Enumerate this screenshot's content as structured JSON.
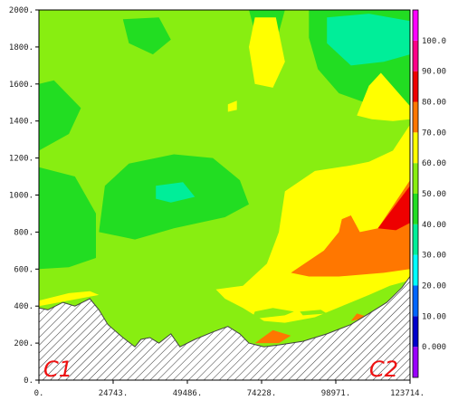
{
  "chart_data": {
    "type": "heatmap",
    "title": "",
    "xlabel": "",
    "ylabel": "",
    "xlim": [
      0,
      123714
    ],
    "ylim": [
      0,
      2000
    ],
    "x_ticks": [
      "0.",
      "24743.",
      "49486.",
      "74228.",
      "98971.",
      "123714."
    ],
    "y_ticks": [
      "0.",
      "200.",
      "400.",
      "600.",
      "800.",
      "1000.",
      "1200.",
      "1400.",
      "1600.",
      "1800.",
      "2000."
    ],
    "x_tick_values": [
      0,
      24743,
      49486,
      74228,
      98971,
      123714
    ],
    "y_tick_values": [
      0,
      200,
      400,
      600,
      800,
      1000,
      1200,
      1400,
      1600,
      1800,
      2000
    ],
    "colorbar_labels": [
      "0.000",
      "10.00",
      "20.00",
      "30.00",
      "40.00",
      "50.00",
      "60.00",
      "70.00",
      "80.00",
      "90.00",
      "100.0"
    ],
    "colorbar_levels": [
      {
        "from": -10,
        "to": 0,
        "color": "#9900ff"
      },
      {
        "from": 0,
        "to": 10,
        "color": "#0000cc"
      },
      {
        "from": 10,
        "to": 20,
        "color": "#0066ff"
      },
      {
        "from": 20,
        "to": 30,
        "color": "#00ffff"
      },
      {
        "from": 30,
        "to": 40,
        "color": "#00ee99"
      },
      {
        "from": 40,
        "to": 50,
        "color": "#22dd22"
      },
      {
        "from": 50,
        "to": 60,
        "color": "#88ee11"
      },
      {
        "from": 60,
        "to": 70,
        "color": "#ffff00"
      },
      {
        "from": 70,
        "to": 80,
        "color": "#ff7700"
      },
      {
        "from": 80,
        "to": 90,
        "color": "#ee0000"
      },
      {
        "from": 90,
        "to": 100,
        "color": "#ff0088"
      },
      {
        "from": 100,
        "to": 110,
        "color": "#ff00ff"
      }
    ],
    "corner_labels": {
      "left": "C1",
      "right": "C2"
    },
    "terrain": {
      "x": [
        0,
        3000,
        8000,
        12000,
        17000,
        20000,
        23000,
        28000,
        32000,
        34000,
        37000,
        40000,
        44000,
        47000,
        52000,
        58000,
        63000,
        67000,
        70000,
        75000,
        80000,
        88000,
        96000,
        104000,
        110000,
        116000,
        121000,
        123714
      ],
      "y": [
        390,
        380,
        420,
        400,
        440,
        380,
        300,
        230,
        180,
        220,
        230,
        200,
        250,
        180,
        220,
        260,
        290,
        250,
        200,
        180,
        190,
        210,
        250,
        300,
        360,
        420,
        500,
        560
      ]
    },
    "regions": [
      {
        "level": 50,
        "points": [
          [
            0,
            0
          ],
          [
            123714,
            0
          ],
          [
            123714,
            2000
          ],
          [
            0,
            2000
          ]
        ]
      },
      {
        "level": 40,
        "points": [
          [
            0,
            600
          ],
          [
            10000,
            610
          ],
          [
            19000,
            660
          ],
          [
            19000,
            900
          ],
          [
            12000,
            1100
          ],
          [
            0,
            1150
          ]
        ]
      },
      {
        "level": 40,
        "points": [
          [
            20000,
            800
          ],
          [
            32000,
            760
          ],
          [
            45000,
            820
          ],
          [
            62000,
            880
          ],
          [
            70000,
            950
          ],
          [
            67000,
            1080
          ],
          [
            58000,
            1200
          ],
          [
            45000,
            1220
          ],
          [
            30000,
            1170
          ],
          [
            22000,
            1050
          ]
        ]
      },
      {
        "level": 40,
        "points": [
          [
            0,
            1240
          ],
          [
            10000,
            1330
          ],
          [
            14000,
            1470
          ],
          [
            5000,
            1620
          ],
          [
            0,
            1600
          ]
        ]
      },
      {
        "level": 40,
        "points": [
          [
            28000,
            1950
          ],
          [
            40000,
            1960
          ],
          [
            44000,
            1840
          ],
          [
            38000,
            1760
          ],
          [
            30000,
            1820
          ]
        ]
      },
      {
        "level": 40,
        "points": [
          [
            70000,
            2000
          ],
          [
            82000,
            2000
          ],
          [
            80000,
            1880
          ],
          [
            72000,
            1880
          ]
        ]
      },
      {
        "level": 40,
        "points": [
          [
            90000,
            2000
          ],
          [
            123714,
            2000
          ],
          [
            123714,
            1460
          ],
          [
            112000,
            1480
          ],
          [
            100000,
            1550
          ],
          [
            93000,
            1680
          ],
          [
            90000,
            1850
          ]
        ]
      },
      {
        "level": 30,
        "points": [
          [
            39000,
            1050
          ],
          [
            48000,
            1070
          ],
          [
            52000,
            990
          ],
          [
            44000,
            960
          ],
          [
            39000,
            980
          ]
        ]
      },
      {
        "level": 30,
        "points": [
          [
            96000,
            1960
          ],
          [
            110000,
            1980
          ],
          [
            123714,
            1940
          ],
          [
            123714,
            1760
          ],
          [
            115000,
            1720
          ],
          [
            104000,
            1700
          ],
          [
            96000,
            1820
          ]
        ]
      },
      {
        "level": 60,
        "points": [
          [
            59000,
            490
          ],
          [
            68000,
            510
          ],
          [
            76000,
            630
          ],
          [
            80000,
            800
          ],
          [
            82000,
            1020
          ],
          [
            92000,
            1130
          ],
          [
            104000,
            1160
          ],
          [
            110000,
            1180
          ],
          [
            118000,
            1240
          ],
          [
            123714,
            1380
          ],
          [
            123714,
            540
          ],
          [
            117000,
            510
          ],
          [
            110000,
            460
          ],
          [
            101000,
            400
          ],
          [
            92000,
            340
          ],
          [
            82000,
            310
          ],
          [
            75000,
            320
          ],
          [
            68000,
            390
          ],
          [
            62000,
            440
          ]
        ]
      },
      {
        "level": 60,
        "points": [
          [
            0,
            400
          ],
          [
            0,
            430
          ],
          [
            10000,
            470
          ],
          [
            17000,
            480
          ],
          [
            20000,
            460
          ]
        ]
      },
      {
        "level": 60,
        "points": [
          [
            70000,
            1800
          ],
          [
            72000,
            1960
          ],
          [
            79000,
            1960
          ],
          [
            82000,
            1720
          ],
          [
            78000,
            1580
          ],
          [
            72000,
            1600
          ]
        ]
      },
      {
        "level": 60,
        "points": [
          [
            106000,
            1430
          ],
          [
            111000,
            1410
          ],
          [
            118000,
            1400
          ],
          [
            123714,
            1410
          ],
          [
            123714,
            1480
          ],
          [
            114000,
            1660
          ],
          [
            110000,
            1590
          ]
        ]
      },
      {
        "level": 60,
        "points": [
          [
            63000,
            1490
          ],
          [
            66000,
            1510
          ],
          [
            66000,
            1460
          ],
          [
            63000,
            1450
          ]
        ]
      },
      {
        "level": 50,
        "points": [
          [
            71000,
            330
          ],
          [
            82000,
            350
          ],
          [
            85000,
            370
          ],
          [
            78000,
            390
          ],
          [
            72000,
            370
          ]
        ]
      },
      {
        "level": 50,
        "points": [
          [
            88000,
            350
          ],
          [
            96000,
            360
          ],
          [
            94000,
            380
          ],
          [
            87000,
            370
          ]
        ]
      },
      {
        "level": 70,
        "points": [
          [
            84000,
            580
          ],
          [
            95000,
            700
          ],
          [
            100000,
            800
          ],
          [
            101000,
            870
          ],
          [
            104000,
            890
          ],
          [
            107000,
            800
          ],
          [
            113000,
            820
          ],
          [
            123714,
            1080
          ],
          [
            123714,
            600
          ],
          [
            115000,
            580
          ],
          [
            100000,
            560
          ],
          [
            90000,
            560
          ]
        ]
      },
      {
        "level": 70,
        "points": [
          [
            72000,
            200
          ],
          [
            80000,
            200
          ],
          [
            84000,
            240
          ],
          [
            78000,
            270
          ]
        ]
      },
      {
        "level": 70,
        "points": [
          [
            104000,
            320
          ],
          [
            110000,
            340
          ],
          [
            106000,
            360
          ]
        ]
      },
      {
        "level": 80,
        "points": [
          [
            113000,
            820
          ],
          [
            123714,
            1050
          ],
          [
            123714,
            850
          ],
          [
            119000,
            810
          ]
        ]
      }
    ]
  }
}
